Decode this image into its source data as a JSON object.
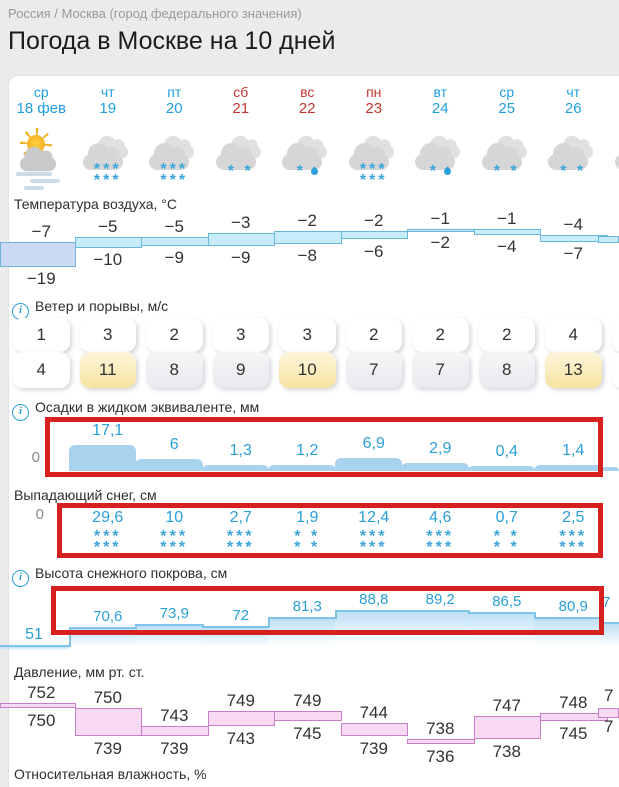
{
  "breadcrumb": "Россия / Москва (город федерального значения)",
  "title": "Погода в Москве на 10 дней",
  "icons": {
    "info": "i"
  },
  "days": [
    {
      "dow": "ср",
      "date": "18 фев",
      "holiday": false,
      "icon": "sun-cloud-fog",
      "precip": "none"
    },
    {
      "dow": "чт",
      "date": "19",
      "holiday": false,
      "icon": "cloud",
      "precip": "snow-heavy"
    },
    {
      "dow": "пт",
      "date": "20",
      "holiday": false,
      "icon": "cloud",
      "precip": "snow-heavy"
    },
    {
      "dow": "сб",
      "date": "21",
      "holiday": true,
      "icon": "cloud",
      "precip": "snow-light"
    },
    {
      "dow": "вс",
      "date": "22",
      "holiday": true,
      "icon": "cloud",
      "precip": "sleet"
    },
    {
      "dow": "пн",
      "date": "23",
      "holiday": true,
      "icon": "cloud",
      "precip": "snow-heavy"
    },
    {
      "dow": "вт",
      "date": "24",
      "holiday": false,
      "icon": "cloud",
      "precip": "sleet"
    },
    {
      "dow": "ср",
      "date": "25",
      "holiday": false,
      "icon": "cloud",
      "precip": "snow-light"
    },
    {
      "dow": "чт",
      "date": "26",
      "holiday": false,
      "icon": "cloud",
      "precip": "snow-light"
    },
    {
      "dow": "",
      "date": "",
      "holiday": false,
      "icon": "cloud",
      "precip": "none"
    }
  ],
  "sections": {
    "temperature": {
      "label": "Температура воздуха, °C",
      "max": [
        -7,
        -5,
        -5,
        -3,
        -2,
        -2,
        -1,
        -1,
        -4
      ],
      "min": [
        -19,
        -10,
        -9,
        -9,
        -8,
        -6,
        -2,
        -4,
        -7
      ]
    },
    "wind": {
      "label": "Ветер и порывы, м/с",
      "wind": [
        1,
        3,
        2,
        3,
        3,
        2,
        2,
        2,
        4
      ],
      "gusts": [
        4,
        11,
        8,
        9,
        10,
        7,
        7,
        8,
        13
      ],
      "gust_levels": [
        "none",
        "high",
        "mid",
        "mid",
        "high",
        "mid",
        "mid",
        "mid",
        "high"
      ]
    },
    "precipitation": {
      "label": "Осадки в жидком эквиваленте, мм",
      "axis_zero": "0",
      "values": [
        "17,1",
        "6",
        "1,3",
        "1,2",
        "6,9",
        "2,9",
        "0,4",
        "1,4"
      ]
    },
    "snowfall": {
      "label": "Выпадающий снег, см",
      "axis_zero": "0",
      "values": [
        "29,6",
        "10",
        "2,7",
        "1,9",
        "12,4",
        "4,6",
        "0,7",
        "2,5"
      ],
      "intensity": [
        "heavy",
        "heavy",
        "heavy",
        "light",
        "heavy",
        "heavy",
        "light",
        "heavy"
      ]
    },
    "snowdepth": {
      "label": "Высота снежного покрова, см",
      "start_value": "51",
      "values": [
        "70,6",
        "73,9",
        "72",
        "81,3",
        "88,8",
        "89,2",
        "86,5",
        "80,9"
      ],
      "next_fragment": "7"
    },
    "pressure": {
      "label": "Давление, мм рт. ст.",
      "max": [
        752,
        750,
        743,
        749,
        749,
        744,
        738,
        747,
        748
      ],
      "min": [
        750,
        739,
        739,
        743,
        745,
        739,
        736,
        738,
        745
      ],
      "next_fragment_max": "7",
      "next_fragment_min": "7"
    },
    "humidity": {
      "label": "Относительная влажность, %"
    }
  },
  "colors": {
    "accent_blue": "#1f9fe0",
    "holiday_red": "#c0352f",
    "value_blue": "#2a9fd8",
    "temp_band_fill": "#c9ecfa",
    "temp_band_cold_fill": "#ccd9f4",
    "temp_band_border": "#6ab5da",
    "precip_fill": "#a9d2ef",
    "pressure_fill": "#f6d9f3",
    "pressure_border": "#c87fc8",
    "highlight_red": "#d61f1f",
    "gust_yellow": "#f6e3a0",
    "gust_gray": "#e9e9ee"
  }
}
